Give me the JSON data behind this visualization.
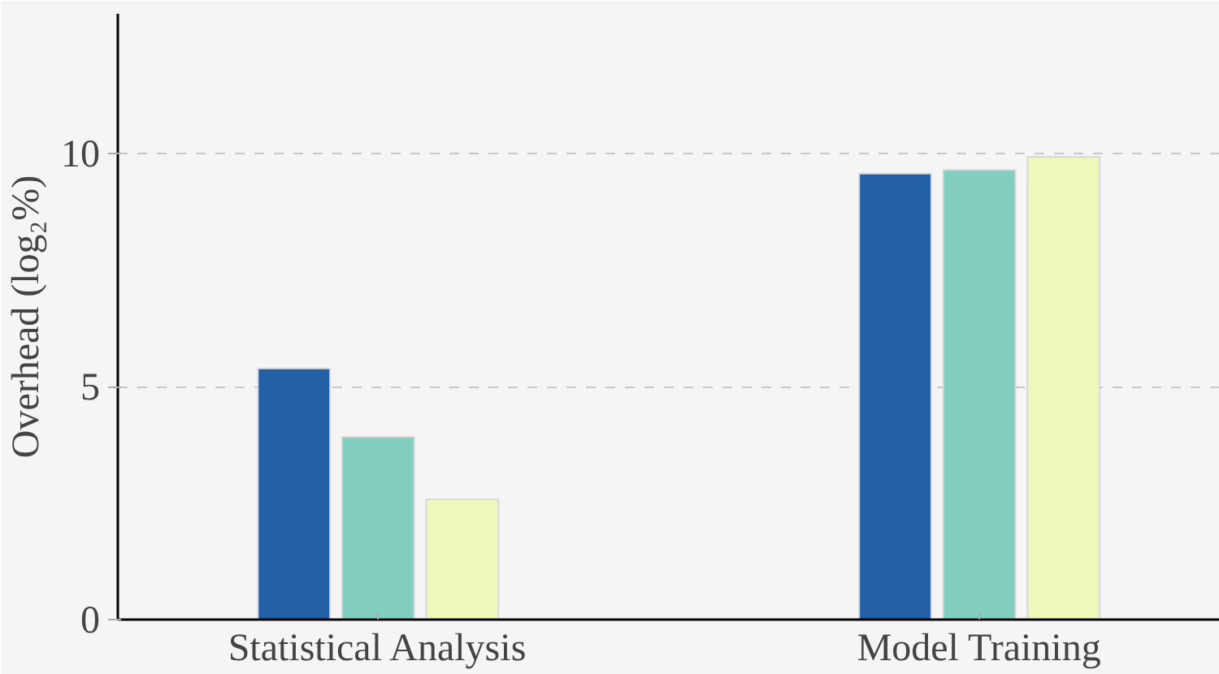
{
  "chart_data": {
    "type": "bar",
    "ylabel": "Overhead (log₂%)",
    "categories": [
      "Statistical Analysis",
      "Model Training"
    ],
    "series": [
      {
        "color": "#245fa6",
        "values": [
          5.39,
          9.57
        ]
      },
      {
        "color": "#82cfbf",
        "values": [
          3.92,
          9.65
        ]
      },
      {
        "color": "#eef8bb",
        "values": [
          2.58,
          9.93
        ]
      }
    ],
    "ylim": [
      0,
      13
    ],
    "yticks": [
      0,
      5,
      10
    ],
    "grid": "y"
  }
}
